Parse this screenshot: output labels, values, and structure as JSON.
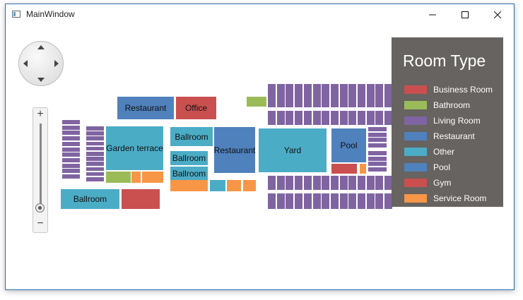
{
  "window": {
    "title": "MainWindow",
    "buttons": {
      "minimize": "—",
      "maximize": "☐",
      "close": "✕"
    }
  },
  "colors": {
    "business": "#c9504f",
    "bathroom": "#9bbb59",
    "living": "#8064a2",
    "restaurant": "#4f81bd",
    "other": "#4bacc6",
    "pool": "#4f81bd",
    "gym": "#c9504f",
    "service": "#f79646"
  },
  "floorplan": {
    "labels": {
      "restaurant_top": "Restaurant",
      "office": "Office",
      "garden_terrace": "Garden terrace",
      "ballroom_1": "Ballroom",
      "ballroom_2": "Ballroom",
      "ballroom_3": "Ballroom",
      "ballroom_4": "Ballroom",
      "restaurant_mid": "Restaurant",
      "yard": "Yard",
      "pool": "Pool"
    }
  },
  "controls": {
    "zoom_in": "+",
    "zoom_out": "−"
  },
  "legend": {
    "title": "Room Type",
    "items": [
      {
        "label": "Business Room",
        "color": "#c9504f"
      },
      {
        "label": "Bathroom",
        "color": "#9bbb59"
      },
      {
        "label": "Living Room",
        "color": "#8064a2"
      },
      {
        "label": "Restaurant",
        "color": "#4f81bd"
      },
      {
        "label": "Other",
        "color": "#4bacc6"
      },
      {
        "label": "Pool",
        "color": "#4f81bd"
      },
      {
        "label": "Gym",
        "color": "#c9504f"
      },
      {
        "label": "Service Room",
        "color": "#f79646"
      }
    ]
  }
}
